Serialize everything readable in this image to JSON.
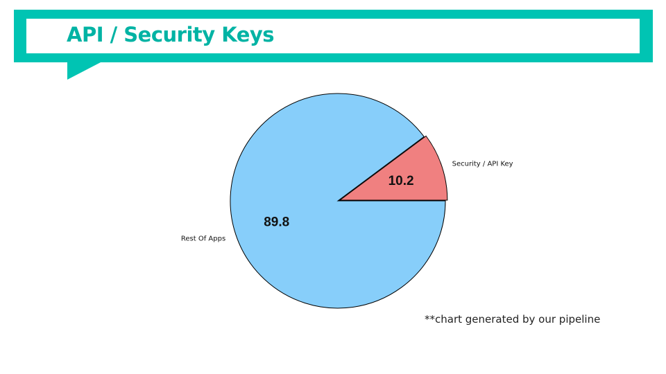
{
  "header": {
    "title": "API / Security Keys"
  },
  "footnote": "**chart generated by our pipeline",
  "chart_data": {
    "type": "pie",
    "slices": [
      {
        "label": "Security / API Key",
        "value": 10.2,
        "color": "#f08080",
        "exploded": true
      },
      {
        "label": "Rest Of Apps",
        "value": 89.8,
        "color": "#87cefa",
        "exploded": false
      }
    ],
    "start_angle_deg": 0,
    "direction": "counterclockwise",
    "edge_color": "#000000"
  }
}
